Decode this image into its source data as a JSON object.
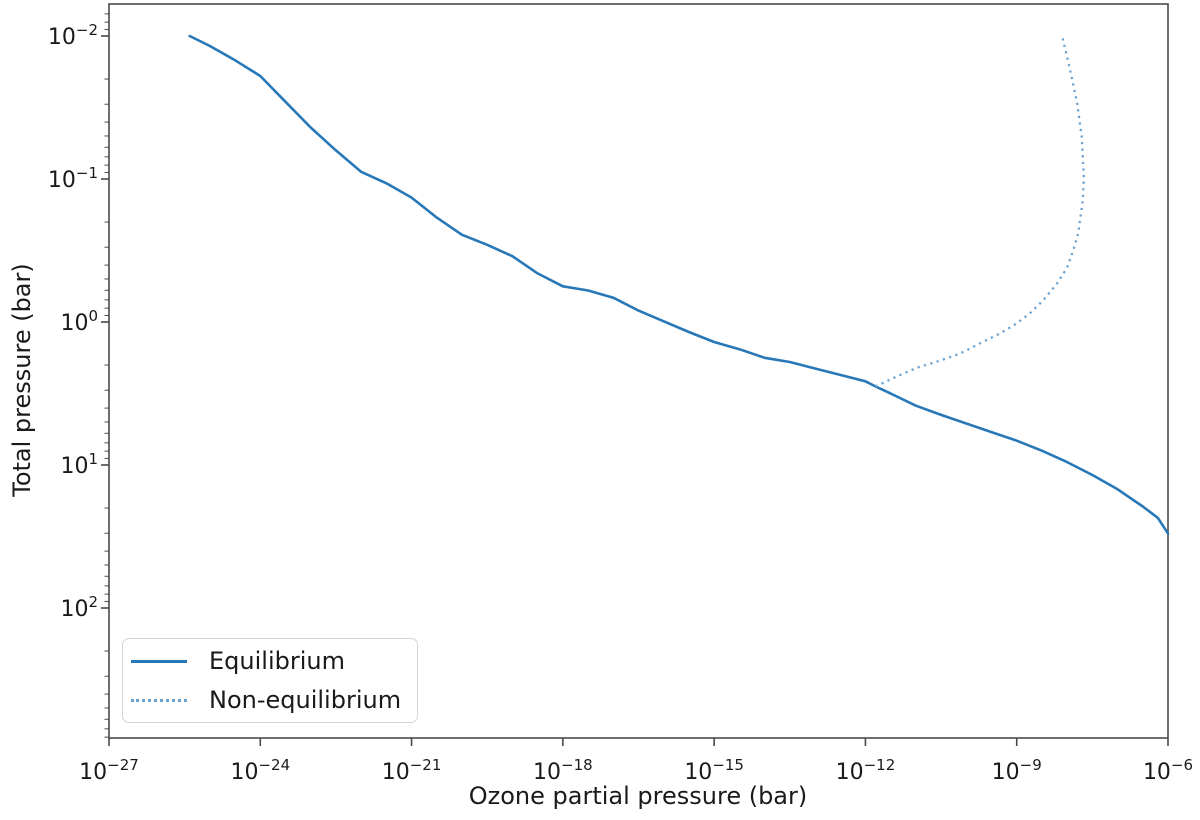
{
  "figure": {
    "background_color": "#ffffff",
    "frame_color": "#4a4a4a",
    "text_color": "#1a1a1a"
  },
  "chart_data": {
    "type": "line",
    "title": "",
    "xlabel": "Ozone partial pressure (bar)",
    "ylabel": "Total pressure (bar)",
    "x_scale": "log",
    "y_scale": "log",
    "y_axis_inverted": true,
    "xlim_log10": [
      -27,
      -6
    ],
    "ylim_log10": [
      -2.22,
      2.905
    ],
    "xtick_exponents": [
      -27,
      -24,
      -21,
      -18,
      -15,
      -12,
      -9,
      -6
    ],
    "ytick_exponents": [
      -2,
      -1,
      0,
      1,
      2
    ],
    "grid": "off",
    "legend_position": "lower-left",
    "series": [
      {
        "name": "Equilibrium",
        "line_style": "solid",
        "color": "#2878b8",
        "points_log10": [
          [
            -25.4,
            -2.0
          ],
          [
            -25.0,
            -1.93
          ],
          [
            -24.5,
            -1.83
          ],
          [
            -24.0,
            -1.72
          ],
          [
            -23.5,
            -1.54
          ],
          [
            -23.0,
            -1.36
          ],
          [
            -22.5,
            -1.2
          ],
          [
            -22.0,
            -1.05
          ],
          [
            -21.5,
            -0.97
          ],
          [
            -21.0,
            -0.87
          ],
          [
            -20.5,
            -0.73
          ],
          [
            -20.0,
            -0.61
          ],
          [
            -19.5,
            -0.54
          ],
          [
            -19.0,
            -0.46
          ],
          [
            -18.5,
            -0.34
          ],
          [
            -18.0,
            -0.25
          ],
          [
            -17.5,
            -0.22
          ],
          [
            -17.0,
            -0.17
          ],
          [
            -16.5,
            -0.08
          ],
          [
            -16.0,
            -0.005
          ],
          [
            -15.5,
            0.07
          ],
          [
            -15.0,
            0.14
          ],
          [
            -14.5,
            0.19
          ],
          [
            -14.0,
            0.25
          ],
          [
            -13.5,
            0.28
          ],
          [
            -13.0,
            0.325
          ],
          [
            -12.5,
            0.37
          ],
          [
            -12.0,
            0.415
          ],
          [
            -11.8,
            0.45
          ],
          [
            -11.5,
            0.5
          ],
          [
            -11.0,
            0.585
          ],
          [
            -10.5,
            0.65
          ],
          [
            -10.0,
            0.71
          ],
          [
            -9.5,
            0.77
          ],
          [
            -9.0,
            0.83
          ],
          [
            -8.5,
            0.9
          ],
          [
            -8.0,
            0.98
          ],
          [
            -7.5,
            1.07
          ],
          [
            -7.0,
            1.17
          ],
          [
            -6.5,
            1.29
          ],
          [
            -6.2,
            1.37
          ],
          [
            -6.0,
            1.48
          ]
        ]
      },
      {
        "name": "Non-equilibrium",
        "line_style": "dotted",
        "color": "#6aa3d2",
        "points_log10": [
          [
            -11.8,
            0.45
          ],
          [
            -11.37,
            0.38
          ],
          [
            -10.98,
            0.32
          ],
          [
            -10.52,
            0.27
          ],
          [
            -10.12,
            0.22
          ],
          [
            -9.73,
            0.15
          ],
          [
            -9.33,
            0.08
          ],
          [
            -9.0,
            0.01
          ],
          [
            -8.74,
            -0.06
          ],
          [
            -8.48,
            -0.15
          ],
          [
            -8.2,
            -0.27
          ],
          [
            -8.0,
            -0.38
          ],
          [
            -7.88,
            -0.5
          ],
          [
            -7.78,
            -0.62
          ],
          [
            -7.69,
            -0.85
          ],
          [
            -7.67,
            -1.01
          ],
          [
            -7.71,
            -1.29
          ],
          [
            -7.8,
            -1.53
          ],
          [
            -7.94,
            -1.76
          ],
          [
            -8.1,
            -2.0
          ]
        ]
      }
    ]
  }
}
